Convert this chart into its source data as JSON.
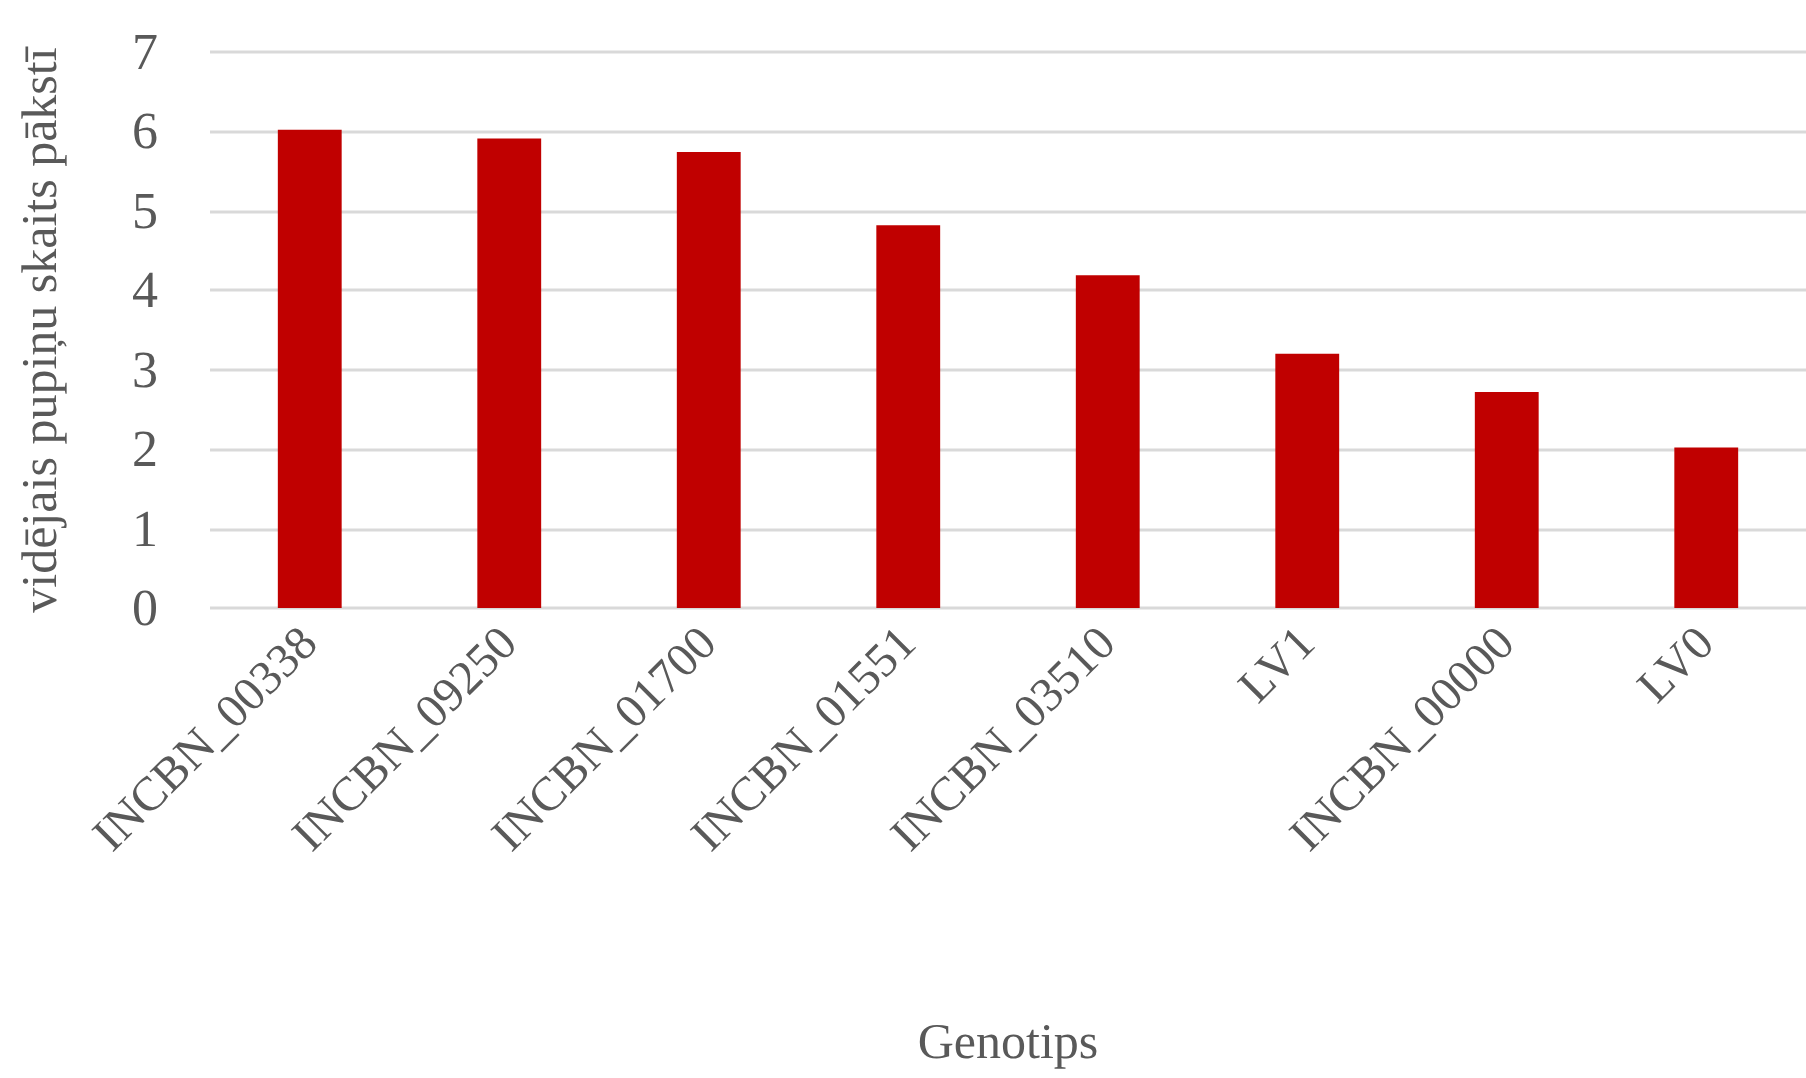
{
  "chart_data": {
    "type": "bar",
    "xlabel": "Genotips",
    "ylabel": "vidējais pupiņu skaits pākstī",
    "categories": [
      "INCBN_00338",
      "INCBN_09250",
      "INCBN_01700",
      "INCBN_01551",
      "INCBN_03510",
      "LV1",
      "INCBN_00000",
      "LV0"
    ],
    "values": [
      6.02,
      5.91,
      5.74,
      4.82,
      4.19,
      3.2,
      2.72,
      2.02
    ],
    "color": "#c00000",
    "ylim": [
      0,
      7
    ],
    "yticks": [
      0,
      1,
      2,
      3,
      4,
      5,
      6,
      7
    ],
    "grid": "y"
  }
}
